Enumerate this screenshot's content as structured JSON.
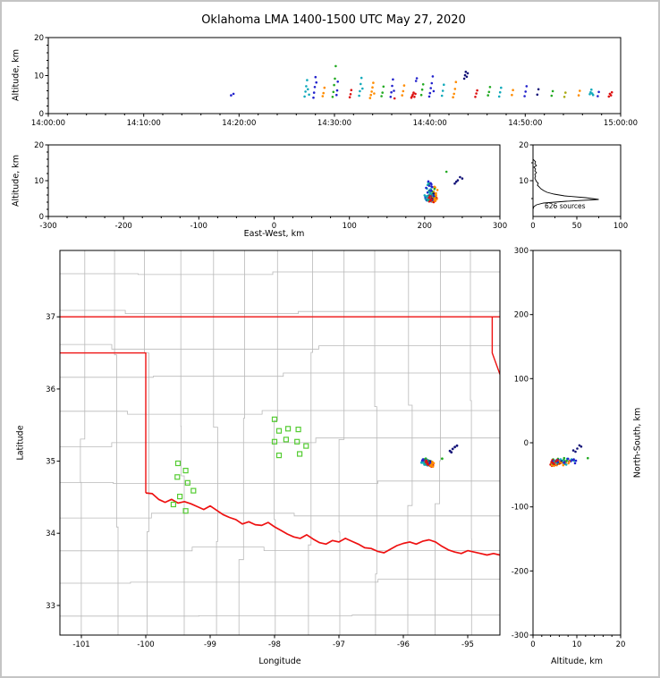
{
  "figure": {
    "title": "Oklahoma LMA 1400-1500 UTC May 27, 2020",
    "background": "#ffffff",
    "border_color": "#c4c4c4"
  },
  "chart_data": [
    {
      "id": "time_height",
      "type": "scatter",
      "xlabel": "",
      "ylabel": "Altitude, km",
      "xlim_s": [
        0,
        3600
      ],
      "ylim": [
        0,
        20
      ],
      "xticks_s": [
        0,
        600,
        1200,
        1800,
        2400,
        3000,
        3600
      ],
      "xtick_labels": [
        "14:00:00",
        "14:10:00",
        "14:20:00",
        "14:30:00",
        "14:40:00",
        "14:50:00",
        "15:00:00"
      ],
      "yticks": [
        0,
        10,
        20
      ],
      "ytick_labels": [
        "0",
        "10",
        "20"
      ]
    },
    {
      "id": "ew_height",
      "type": "scatter",
      "xlabel": "East-West, km",
      "ylabel": "Altitude, km",
      "xlim": [
        -300,
        300
      ],
      "ylim": [
        0,
        20
      ],
      "xticks": [
        -300,
        -200,
        -100,
        0,
        100,
        200,
        300
      ],
      "xtick_labels": [
        "-300",
        "-200",
        "-100",
        "0",
        "100",
        "200",
        "300"
      ],
      "yticks": [
        0,
        10,
        20
      ],
      "ytick_labels": [
        "0",
        "10",
        "20"
      ]
    },
    {
      "id": "alt_histogram",
      "type": "line",
      "annotation": "626 sources",
      "xlim": [
        0,
        100
      ],
      "ylim": [
        0,
        20
      ],
      "xticks": [
        0,
        50,
        100
      ],
      "xtick_labels": [
        "0",
        "50",
        "100"
      ],
      "yticks": [
        10,
        20
      ],
      "ytick_labels": [
        "10",
        "20"
      ],
      "profile_alt_count": [
        [
          2.5,
          1
        ],
        [
          3,
          4
        ],
        [
          3.5,
          12
        ],
        [
          4,
          38
        ],
        [
          4.5,
          75
        ],
        [
          5,
          60
        ],
        [
          5.5,
          36
        ],
        [
          6,
          24
        ],
        [
          6.5,
          16
        ],
        [
          7,
          12
        ],
        [
          7.5,
          9
        ],
        [
          8,
          7
        ],
        [
          8.5,
          5
        ],
        [
          9,
          6
        ],
        [
          9.5,
          4
        ],
        [
          10,
          3
        ],
        [
          10.5,
          2
        ],
        [
          11,
          3
        ],
        [
          11.5,
          2
        ],
        [
          12,
          4
        ],
        [
          12.5,
          2
        ],
        [
          13,
          3
        ],
        [
          13.5,
          1
        ],
        [
          14,
          4
        ],
        [
          14.5,
          2
        ],
        [
          15,
          3
        ],
        [
          15.5,
          1
        ]
      ]
    },
    {
      "id": "map",
      "type": "scatter",
      "xlabel": "Longitude",
      "ylabel": "Latitude",
      "xlim": [
        -101.333,
        -94.5
      ],
      "ylim": [
        32.59,
        37.92
      ],
      "xticks": [
        -101,
        -100,
        -99,
        -98,
        -97,
        -96,
        -95
      ],
      "xtick_labels": [
        "-101",
        "-100",
        "-99",
        "-98",
        "-97",
        "-96",
        "-95"
      ],
      "yticks": [
        33,
        34,
        35,
        36,
        37
      ],
      "ytick_labels": [
        "33",
        "34",
        "35",
        "36",
        "37"
      ],
      "lon_center": -97.917,
      "lat_center": 35.25,
      "km_per_deg_lon": 90.9,
      "km_per_deg_lat": 111.0,
      "border_color": "#ee1111",
      "county_color": "#b9b9b9",
      "station_color": "#55cc33",
      "state_border": {
        "north_37": [
          [
            -101.35,
            37
          ],
          [
            -94.49,
            37
          ]
        ],
        "east": [
          [
            -94.62,
            37
          ],
          [
            -94.62,
            36.5
          ],
          [
            -94.49,
            36.18
          ]
        ],
        "panhandle": [
          [
            -101.35,
            36.5
          ],
          [
            -100,
            36.5
          ],
          [
            -100,
            34.56
          ]
        ],
        "red_river": [
          [
            -100,
            34.56
          ],
          [
            -99.9,
            34.55
          ],
          [
            -99.8,
            34.47
          ],
          [
            -99.7,
            34.43
          ],
          [
            -99.6,
            34.47
          ],
          [
            -99.5,
            34.42
          ],
          [
            -99.4,
            34.44
          ],
          [
            -99.3,
            34.41
          ],
          [
            -99.2,
            34.37
          ],
          [
            -99.1,
            34.33
          ],
          [
            -99.0,
            34.38
          ],
          [
            -98.9,
            34.32
          ],
          [
            -98.8,
            34.26
          ],
          [
            -98.7,
            34.22
          ],
          [
            -98.6,
            34.19
          ],
          [
            -98.5,
            34.13
          ],
          [
            -98.4,
            34.16
          ],
          [
            -98.3,
            34.12
          ],
          [
            -98.2,
            34.11
          ],
          [
            -98.1,
            34.15
          ],
          [
            -98.0,
            34.09
          ],
          [
            -97.9,
            34.04
          ],
          [
            -97.8,
            33.99
          ],
          [
            -97.7,
            33.95
          ],
          [
            -97.6,
            33.93
          ],
          [
            -97.5,
            33.98
          ],
          [
            -97.4,
            33.92
          ],
          [
            -97.3,
            33.87
          ],
          [
            -97.2,
            33.85
          ],
          [
            -97.1,
            33.9
          ],
          [
            -97.0,
            33.88
          ],
          [
            -96.9,
            33.93
          ],
          [
            -96.8,
            33.89
          ],
          [
            -96.7,
            33.85
          ],
          [
            -96.6,
            33.8
          ],
          [
            -96.5,
            33.79
          ],
          [
            -96.4,
            33.75
          ],
          [
            -96.3,
            33.73
          ],
          [
            -96.2,
            33.78
          ],
          [
            -96.1,
            33.83
          ],
          [
            -96.0,
            33.86
          ],
          [
            -95.9,
            33.88
          ],
          [
            -95.8,
            33.85
          ],
          [
            -95.7,
            33.89
          ],
          [
            -95.6,
            33.91
          ],
          [
            -95.5,
            33.88
          ],
          [
            -95.4,
            33.82
          ],
          [
            -95.3,
            33.77
          ],
          [
            -95.2,
            33.74
          ],
          [
            -95.1,
            33.72
          ],
          [
            -95.0,
            33.76
          ],
          [
            -94.9,
            33.74
          ],
          [
            -94.8,
            33.72
          ],
          [
            -94.7,
            33.7
          ],
          [
            -94.6,
            33.72
          ],
          [
            -94.5,
            33.7
          ]
        ]
      },
      "stations_lonlat": [
        [
          -99.5,
          34.97
        ],
        [
          -99.38,
          34.87
        ],
        [
          -99.51,
          34.78
        ],
        [
          -99.35,
          34.7
        ],
        [
          -99.26,
          34.59
        ],
        [
          -99.47,
          34.51
        ],
        [
          -99.57,
          34.4
        ],
        [
          -99.38,
          34.31
        ],
        [
          -98.0,
          35.58
        ],
        [
          -97.93,
          35.42
        ],
        [
          -97.79,
          35.45
        ],
        [
          -97.63,
          35.44
        ],
        [
          -98.0,
          35.27
        ],
        [
          -97.82,
          35.3
        ],
        [
          -97.65,
          35.27
        ],
        [
          -97.51,
          35.21
        ],
        [
          -97.93,
          35.08
        ],
        [
          -97.61,
          35.1
        ]
      ]
    },
    {
      "id": "ns_height",
      "type": "scatter",
      "xlabel": "Altitude, km",
      "ylabel": "North-South, km",
      "xlim": [
        0,
        20
      ],
      "ylim": [
        -300,
        300
      ],
      "xticks": [
        0,
        10,
        20
      ],
      "xtick_labels": [
        "0",
        "10",
        "20"
      ],
      "yticks": [
        300,
        200,
        100,
        0,
        -100,
        -200,
        -300
      ],
      "ytick_labels": [
        "300",
        "200",
        "100",
        "0",
        "-100",
        "-200",
        "-300"
      ]
    }
  ],
  "sources": {
    "count_label": "626 sources",
    "color_palette": [
      "#2222cc",
      "#9922cc",
      "#ff8c00",
      "#dd1111",
      "#22aa22",
      "#111177",
      "#aaaa11",
      "#11aabb"
    ],
    "points_t_alt_ew_ns_c": [
      [
        1150,
        4.8,
        204,
        -29,
        0
      ],
      [
        1165,
        5.2,
        207,
        -31,
        0
      ],
      [
        1612,
        4.5,
        203,
        -30,
        7
      ],
      [
        1618,
        5.8,
        205,
        -28,
        7
      ],
      [
        1622,
        7.2,
        206,
        -33,
        7
      ],
      [
        1628,
        8.8,
        204,
        -26,
        7
      ],
      [
        1633,
        6.4,
        208,
        -31,
        7
      ],
      [
        1640,
        5.0,
        201,
        -29,
        7
      ],
      [
        1668,
        4.2,
        209,
        -34,
        0
      ],
      [
        1672,
        5.5,
        211,
        -30,
        0
      ],
      [
        1676,
        7.0,
        207,
        -27,
        0
      ],
      [
        1681,
        9.6,
        205,
        -32,
        0
      ],
      [
        1686,
        8.2,
        210,
        -29,
        0
      ],
      [
        1726,
        4.6,
        213,
        -33,
        2
      ],
      [
        1731,
        5.4,
        215,
        -35,
        2
      ],
      [
        1737,
        6.8,
        212,
        -31,
        2
      ],
      [
        1788,
        4.4,
        206,
        -28,
        4
      ],
      [
        1793,
        5.7,
        204,
        -25,
        4
      ],
      [
        1798,
        7.5,
        208,
        -30,
        4
      ],
      [
        1803,
        9.2,
        206,
        -27,
        4
      ],
      [
        1808,
        12.5,
        229,
        -24,
        4
      ],
      [
        1813,
        4.9,
        210,
        -32,
        0
      ],
      [
        1817,
        6.1,
        212,
        -30,
        0
      ],
      [
        1821,
        8.4,
        209,
        -28,
        0
      ],
      [
        1896,
        4.3,
        214,
        -36,
        3
      ],
      [
        1901,
        5.1,
        216,
        -34,
        3
      ],
      [
        1906,
        6.2,
        213,
        -32,
        3
      ],
      [
        1955,
        4.7,
        202,
        -27,
        7
      ],
      [
        1960,
        5.9,
        200,
        -30,
        7
      ],
      [
        1965,
        7.8,
        203,
        -25,
        7
      ],
      [
        1970,
        9.4,
        205,
        -28,
        7
      ],
      [
        1976,
        6.6,
        207,
        -31,
        7
      ],
      [
        2024,
        4.1,
        211,
        -33,
        2
      ],
      [
        2029,
        4.9,
        213,
        -31,
        2
      ],
      [
        2034,
        5.8,
        215,
        -29,
        2
      ],
      [
        2039,
        6.9,
        212,
        -35,
        2
      ],
      [
        2044,
        8.1,
        214,
        -32,
        2
      ],
      [
        2050,
        5.3,
        210,
        -30,
        2
      ],
      [
        2096,
        4.6,
        205,
        -26,
        4
      ],
      [
        2102,
        5.5,
        203,
        -29,
        4
      ],
      [
        2108,
        7.1,
        206,
        -24,
        4
      ],
      [
        2153,
        4.4,
        208,
        -31,
        0
      ],
      [
        2158,
        5.6,
        210,
        -33,
        0
      ],
      [
        2163,
        7.3,
        207,
        -29,
        0
      ],
      [
        2168,
        9.0,
        209,
        -27,
        0
      ],
      [
        2174,
        6.0,
        211,
        -30,
        0
      ],
      [
        2178,
        4.0,
        212,
        -34,
        3
      ],
      [
        2226,
        4.8,
        216,
        -36,
        2
      ],
      [
        2232,
        5.9,
        214,
        -33,
        2
      ],
      [
        2238,
        7.4,
        217,
        -31,
        2
      ],
      [
        2284,
        4.2,
        206,
        -30,
        3
      ],
      [
        2288,
        4.6,
        204,
        -28,
        3
      ],
      [
        2293,
        5.0,
        208,
        -32,
        3
      ],
      [
        2298,
        5.5,
        205,
        -29,
        3
      ],
      [
        2303,
        4.4,
        207,
        -27,
        3
      ],
      [
        2309,
        5.2,
        209,
        -31,
        3
      ],
      [
        2313,
        8.6,
        206,
        -29,
        0
      ],
      [
        2318,
        9.3,
        208,
        -26,
        0
      ],
      [
        2346,
        4.9,
        212,
        -33,
        4
      ],
      [
        2352,
        6.3,
        210,
        -31,
        4
      ],
      [
        2358,
        7.7,
        213,
        -28,
        4
      ],
      [
        2396,
        4.5,
        203,
        -29,
        0
      ],
      [
        2401,
        5.4,
        201,
        -27,
        0
      ],
      [
        2406,
        6.7,
        204,
        -31,
        0
      ],
      [
        2412,
        8.0,
        202,
        -25,
        0
      ],
      [
        2418,
        9.8,
        205,
        -28,
        0
      ],
      [
        2424,
        5.9,
        206,
        -30,
        0
      ],
      [
        2476,
        4.7,
        209,
        -32,
        7
      ],
      [
        2482,
        6.0,
        211,
        -30,
        7
      ],
      [
        2488,
        7.6,
        208,
        -34,
        7
      ],
      [
        2546,
        4.3,
        214,
        -35,
        2
      ],
      [
        2552,
        5.2,
        212,
        -33,
        2
      ],
      [
        2558,
        6.5,
        215,
        -31,
        2
      ],
      [
        2564,
        8.3,
        213,
        -29,
        2
      ],
      [
        2616,
        9.2,
        240,
        -12,
        5
      ],
      [
        2621,
        10.1,
        244,
        -9,
        5
      ],
      [
        2626,
        11.0,
        247,
        -6,
        5
      ],
      [
        2632,
        9.7,
        242,
        -14,
        5
      ],
      [
        2638,
        10.6,
        250,
        -4,
        5
      ],
      [
        2686,
        4.4,
        207,
        -30,
        3
      ],
      [
        2692,
        5.3,
        205,
        -28,
        3
      ],
      [
        2698,
        6.1,
        208,
        -32,
        3
      ],
      [
        2766,
        4.8,
        211,
        -29,
        4
      ],
      [
        2772,
        5.7,
        213,
        -31,
        4
      ],
      [
        2778,
        7.0,
        210,
        -27,
        4
      ],
      [
        2836,
        4.5,
        204,
        -33,
        7
      ],
      [
        2842,
        5.6,
        202,
        -30,
        7
      ],
      [
        2848,
        6.8,
        206,
        -28,
        7
      ],
      [
        2916,
        4.9,
        212,
        -32,
        2
      ],
      [
        2923,
        6.2,
        214,
        -30,
        2
      ],
      [
        2996,
        4.6,
        208,
        -29,
        0
      ],
      [
        3002,
        5.8,
        206,
        -27,
        0
      ],
      [
        3008,
        7.2,
        209,
        -31,
        0
      ],
      [
        3076,
        5.0,
        210,
        -30,
        5
      ],
      [
        3083,
        6.4,
        212,
        -28,
        5
      ],
      [
        3166,
        4.7,
        205,
        -31,
        4
      ],
      [
        3173,
        5.9,
        207,
        -29,
        4
      ],
      [
        3246,
        4.4,
        209,
        -33,
        6
      ],
      [
        3253,
        5.5,
        211,
        -30,
        6
      ],
      [
        3336,
        4.8,
        213,
        -32,
        2
      ],
      [
        3343,
        6.0,
        215,
        -29,
        2
      ],
      [
        3406,
        5.1,
        206,
        -28,
        7
      ],
      [
        3411,
        5.6,
        204,
        -30,
        7
      ],
      [
        3416,
        6.3,
        208,
        -26,
        7
      ],
      [
        3421,
        5.3,
        207,
        -31,
        7
      ],
      [
        3427,
        4.9,
        205,
        -29,
        7
      ],
      [
        3456,
        4.6,
        210,
        -32,
        0
      ],
      [
        3463,
        5.7,
        212,
        -30,
        0
      ],
      [
        3526,
        4.5,
        208,
        -31,
        3
      ],
      [
        3532,
        5.2,
        206,
        -29,
        3
      ],
      [
        3539,
        4.8,
        209,
        -33,
        3
      ],
      [
        3545,
        5.6,
        207,
        -27,
        3
      ]
    ]
  }
}
